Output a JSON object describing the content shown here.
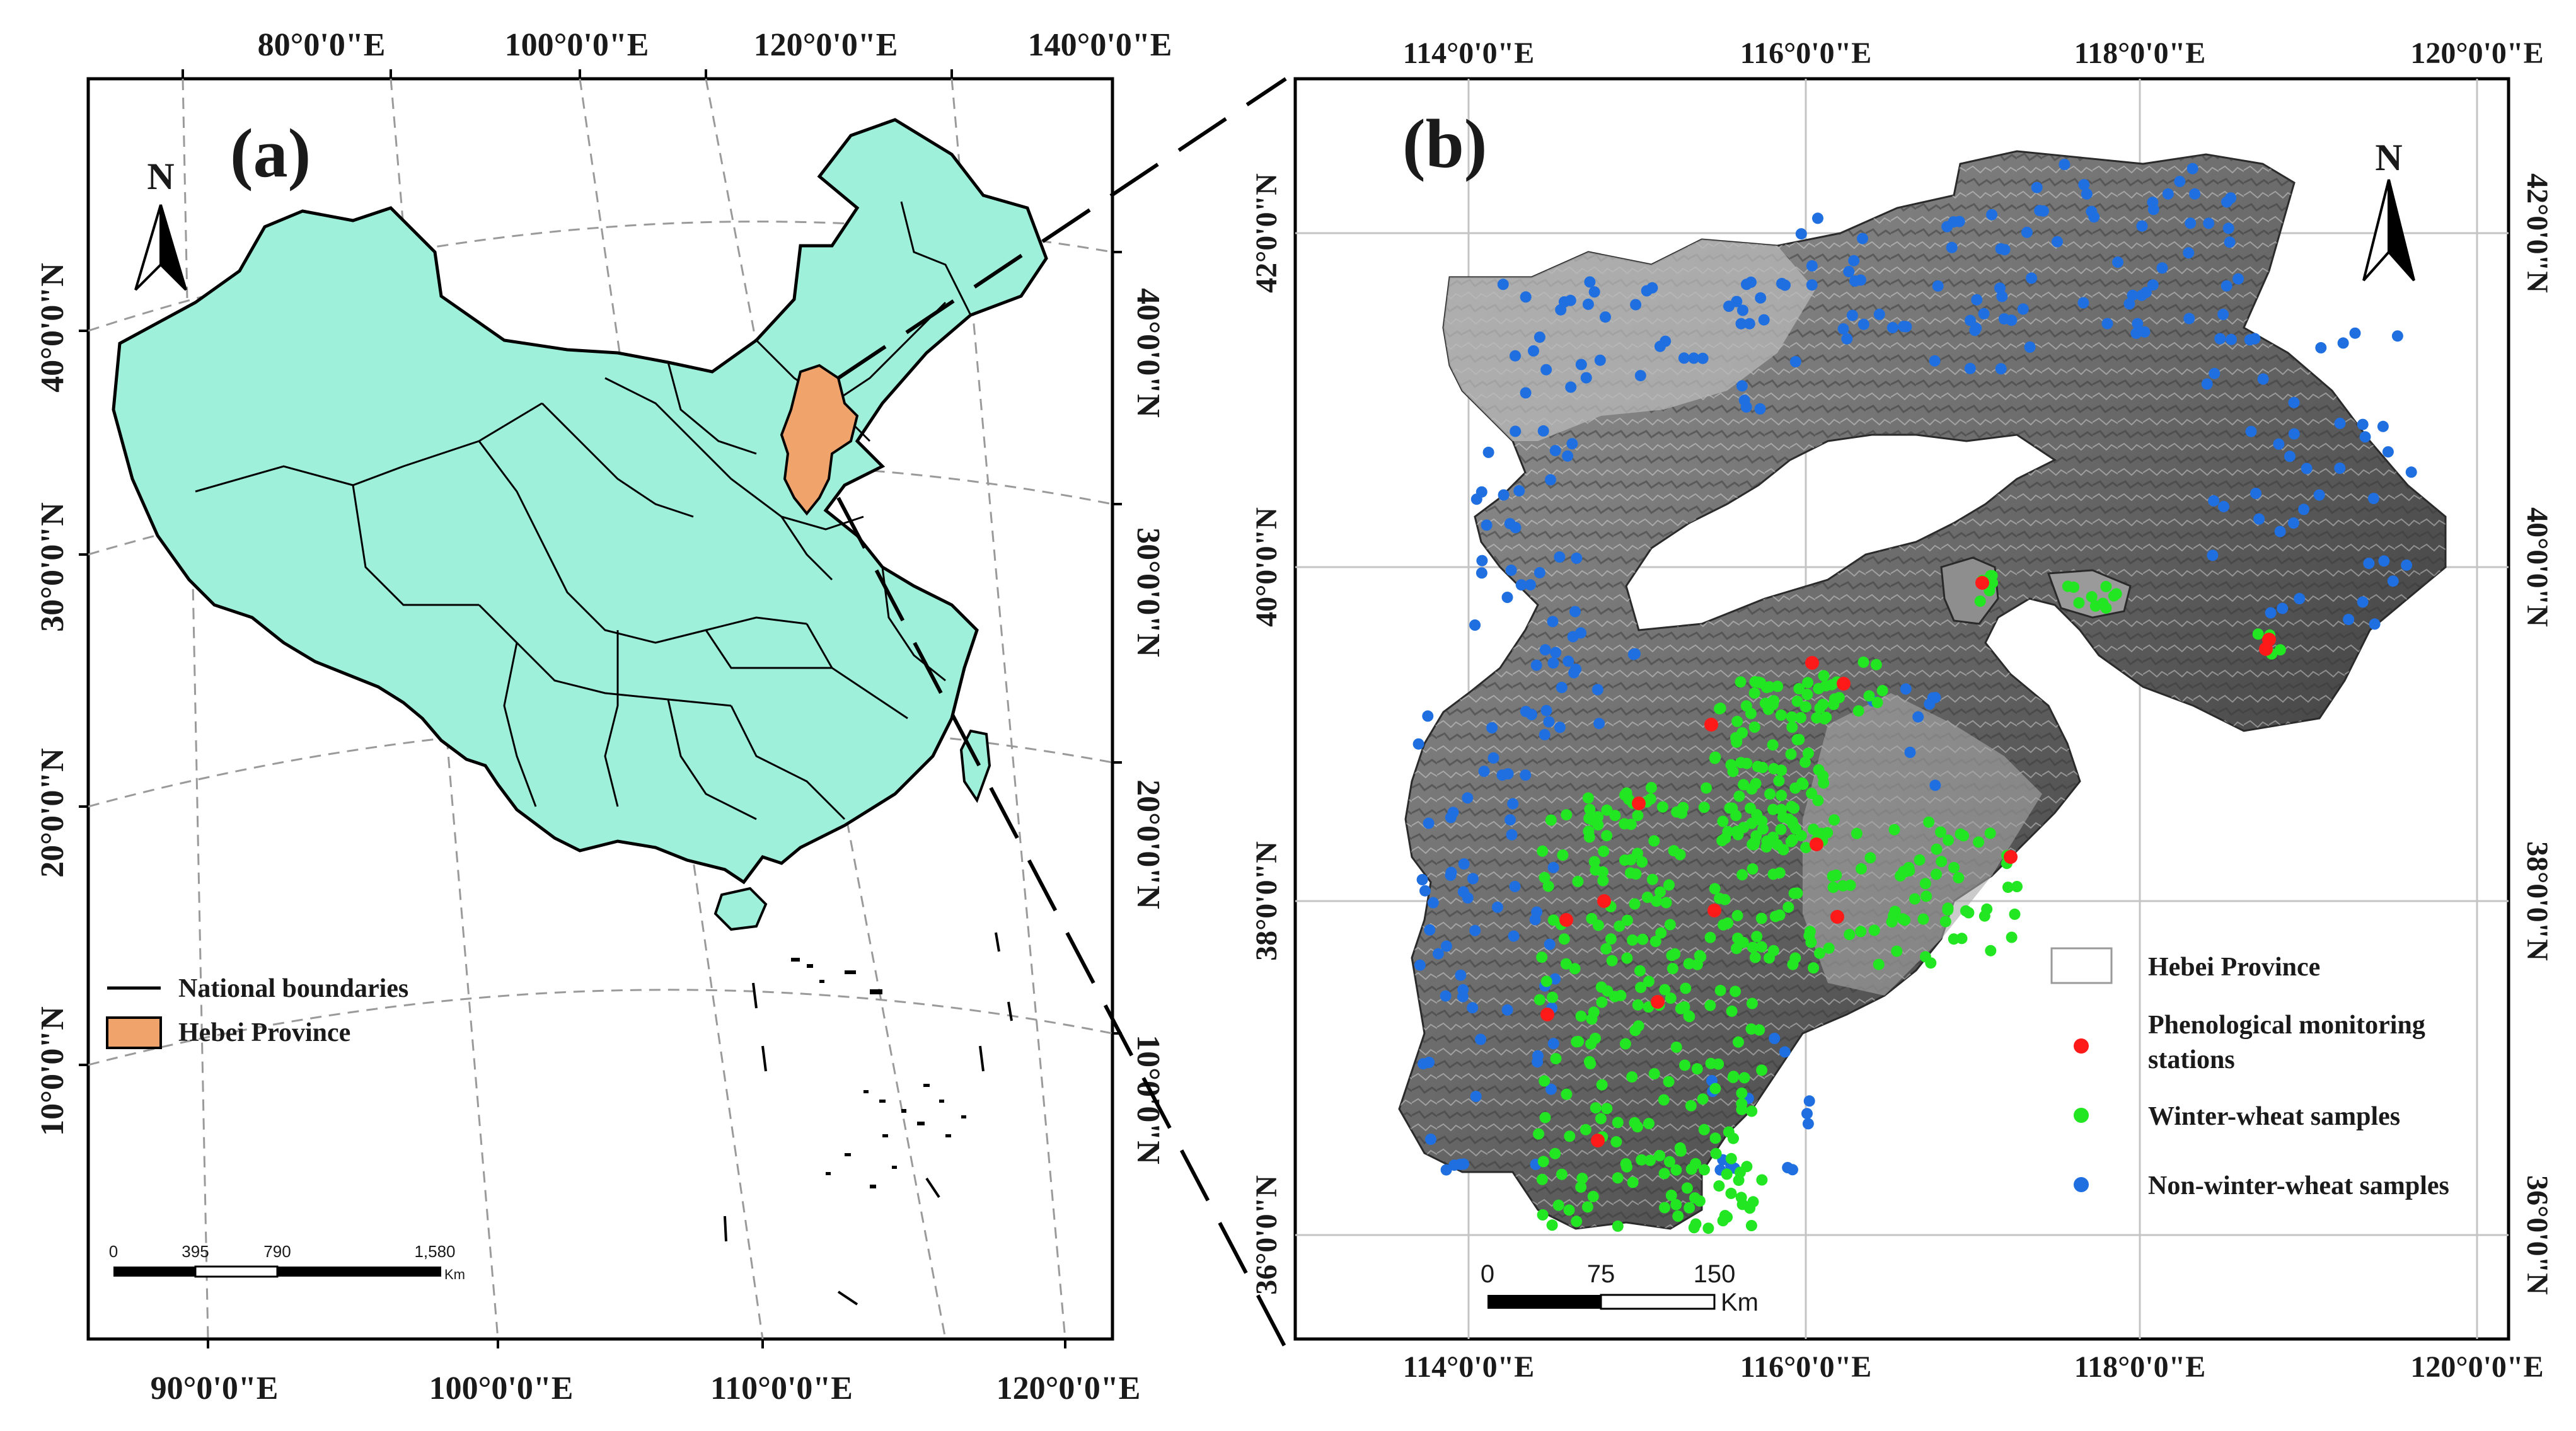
{
  "panel_a": {
    "label": "(a)",
    "north_label": "N",
    "top_lon_labels": [
      "80°0'0\"E",
      "100°0'0\"E",
      "120°0'0\"E",
      "140°0'0\"E"
    ],
    "bottom_lon_labels": [
      "90°0'0\"E",
      "100°0'0\"E",
      "110°0'0\"E",
      "120°0'0\"E"
    ],
    "left_lat_labels": [
      "40°0'0\"N",
      "30°0'0\"N",
      "20°0'0\"N",
      "10°0'0\"N"
    ],
    "right_lat_labels": [
      "40°0'0\"N",
      "30°0'0\"N",
      "20°0'0\"N",
      "10°0'0\"N"
    ],
    "legend": {
      "national_boundaries": "National  boundaries",
      "hebei_province": "Hebei Province"
    },
    "scale_bar": {
      "ticks": [
        "0",
        "395",
        "790",
        "1,580"
      ],
      "unit": "Km"
    },
    "colors": {
      "china_fill": "#9ff0db",
      "hebei_fill": "#f0a46c"
    }
  },
  "panel_b": {
    "label": "(b)",
    "north_label": "N",
    "top_lon_labels": [
      "114°0'0\"E",
      "116°0'0\"E",
      "118°0'0\"E",
      "120°0'0\"E"
    ],
    "bottom_lon_labels": [
      "114°0'0\"E",
      "116°0'0\"E",
      "118°0'0\"E",
      "120°0'0\"E"
    ],
    "left_lat_labels": [
      "42°0'0\"N",
      "40°0'0\"N",
      "38°0'0\"N",
      "36°0'0\"N"
    ],
    "right_lat_labels": [
      "42°0'0\"N",
      "40°0'0\"N",
      "38°0'0\"N",
      "36°0'0\"N"
    ],
    "legend": {
      "hebei_province": "Hebei Province",
      "stations_line1": "Phenological monitoring",
      "stations_line2": "stations",
      "winter_wheat": "Winter-wheat samples",
      "non_winter_wheat": "Non-winter-wheat samples"
    },
    "scale_bar": {
      "ticks": [
        "0",
        "75",
        "150"
      ],
      "unit": "Km"
    },
    "colors": {
      "stations": "#ff1a1a",
      "winter_wheat": "#22e622",
      "non_winter_wheat": "#1f6fe0"
    }
  }
}
